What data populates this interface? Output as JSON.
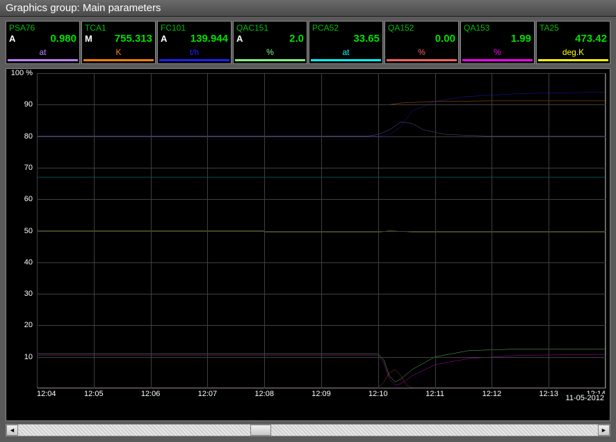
{
  "title": "Graphics group: Main parameters",
  "date": "11-05-2012",
  "channels": [
    {
      "tag": "PSA76",
      "mode": "A",
      "value": "0.980",
      "unit": "at",
      "color": "#c080ff"
    },
    {
      "tag": "TCA1",
      "mode": "M",
      "value": "755.313",
      "unit": "K",
      "color": "#ff8000"
    },
    {
      "tag": "FC101",
      "mode": "A",
      "value": "139.944",
      "unit": "t/h",
      "color": "#2020ff"
    },
    {
      "tag": "QAC151",
      "mode": "A",
      "value": "2.0",
      "unit": "%",
      "color": "#80ff80"
    },
    {
      "tag": "PCA52",
      "mode": "",
      "value": "33.65",
      "unit": "at",
      "color": "#00ffff"
    },
    {
      "tag": "QA152",
      "mode": "",
      "value": "0.00",
      "unit": "%",
      "color": "#ff6060"
    },
    {
      "tag": "QA153",
      "mode": "",
      "value": "1.99",
      "unit": "%",
      "color": "#ff00ff"
    },
    {
      "tag": "TA25",
      "mode": "",
      "value": "473.42",
      "unit": "deg.K",
      "color": "#ffff00"
    }
  ],
  "y_axis": {
    "min": 0,
    "max": 100,
    "ticks": [
      100,
      90,
      80,
      70,
      60,
      50,
      40,
      30,
      20,
      10
    ],
    "top_label": "100 %"
  },
  "x_axis": {
    "labels": [
      "12:04",
      "12:05",
      "12:06",
      "12:07",
      "12:08",
      "12:09",
      "12:10",
      "12:11",
      "12:12",
      "12:13",
      "12:14"
    ]
  },
  "series": [
    {
      "color": "#ff8000",
      "width": 1.5,
      "points": [
        [
          0,
          90
        ],
        [
          62,
          90
        ],
        [
          64,
          90.5
        ],
        [
          70,
          91
        ],
        [
          80,
          91.2
        ],
        [
          100,
          91.2
        ]
      ]
    },
    {
      "color": "#2020ff",
      "width": 1.5,
      "points": [
        [
          0,
          80
        ],
        [
          60,
          80
        ],
        [
          62,
          80.5
        ],
        [
          64,
          83
        ],
        [
          66,
          88
        ],
        [
          70,
          91
        ],
        [
          75,
          92.5
        ],
        [
          85,
          93.5
        ],
        [
          100,
          94
        ]
      ]
    },
    {
      "color": "#c080ff",
      "width": 1.2,
      "points": [
        [
          0,
          80
        ],
        [
          58,
          80
        ],
        [
          60,
          80.5
        ],
        [
          62,
          82
        ],
        [
          64,
          84.5
        ],
        [
          66,
          84
        ],
        [
          68,
          82
        ],
        [
          72,
          80.5
        ],
        [
          80,
          80
        ],
        [
          100,
          80
        ]
      ]
    },
    {
      "color": "#00ffff",
      "width": 1.2,
      "points": [
        [
          0,
          67
        ],
        [
          100,
          67
        ]
      ]
    },
    {
      "color": "#ffff00",
      "width": 1.2,
      "points": [
        [
          0,
          50
        ],
        [
          40,
          50
        ],
        [
          40.2,
          49.5
        ],
        [
          60,
          49.5
        ],
        [
          62,
          50
        ],
        [
          66,
          49.6
        ],
        [
          100,
          49.6
        ]
      ]
    },
    {
      "color": "#80ff80",
      "width": 1.5,
      "points": [
        [
          0,
          11
        ],
        [
          60,
          11
        ],
        [
          61,
          9
        ],
        [
          62,
          4
        ],
        [
          63,
          2
        ],
        [
          64,
          3
        ],
        [
          66,
          6
        ],
        [
          70,
          10
        ],
        [
          76,
          12
        ],
        [
          85,
          12.5
        ],
        [
          100,
          12.5
        ]
      ]
    },
    {
      "color": "#ff00ff",
      "width": 1.5,
      "points": [
        [
          0,
          10.5
        ],
        [
          60,
          10.5
        ],
        [
          61,
          8
        ],
        [
          62,
          3
        ],
        [
          63,
          1
        ],
        [
          64,
          1.5
        ],
        [
          66,
          4
        ],
        [
          70,
          7.5
        ],
        [
          76,
          9.5
        ],
        [
          85,
          10.5
        ],
        [
          100,
          10.8
        ]
      ]
    },
    {
      "color": "#ff6060",
      "width": 1.2,
      "points": [
        [
          0,
          0.2
        ],
        [
          60,
          0.2
        ],
        [
          61,
          2
        ],
        [
          62,
          5
        ],
        [
          63,
          6
        ],
        [
          64,
          4
        ],
        [
          65,
          1
        ],
        [
          66,
          0.2
        ],
        [
          100,
          0.2
        ]
      ]
    }
  ],
  "scrollbar": {
    "left_arrow": "◄",
    "right_arrow": "►"
  }
}
